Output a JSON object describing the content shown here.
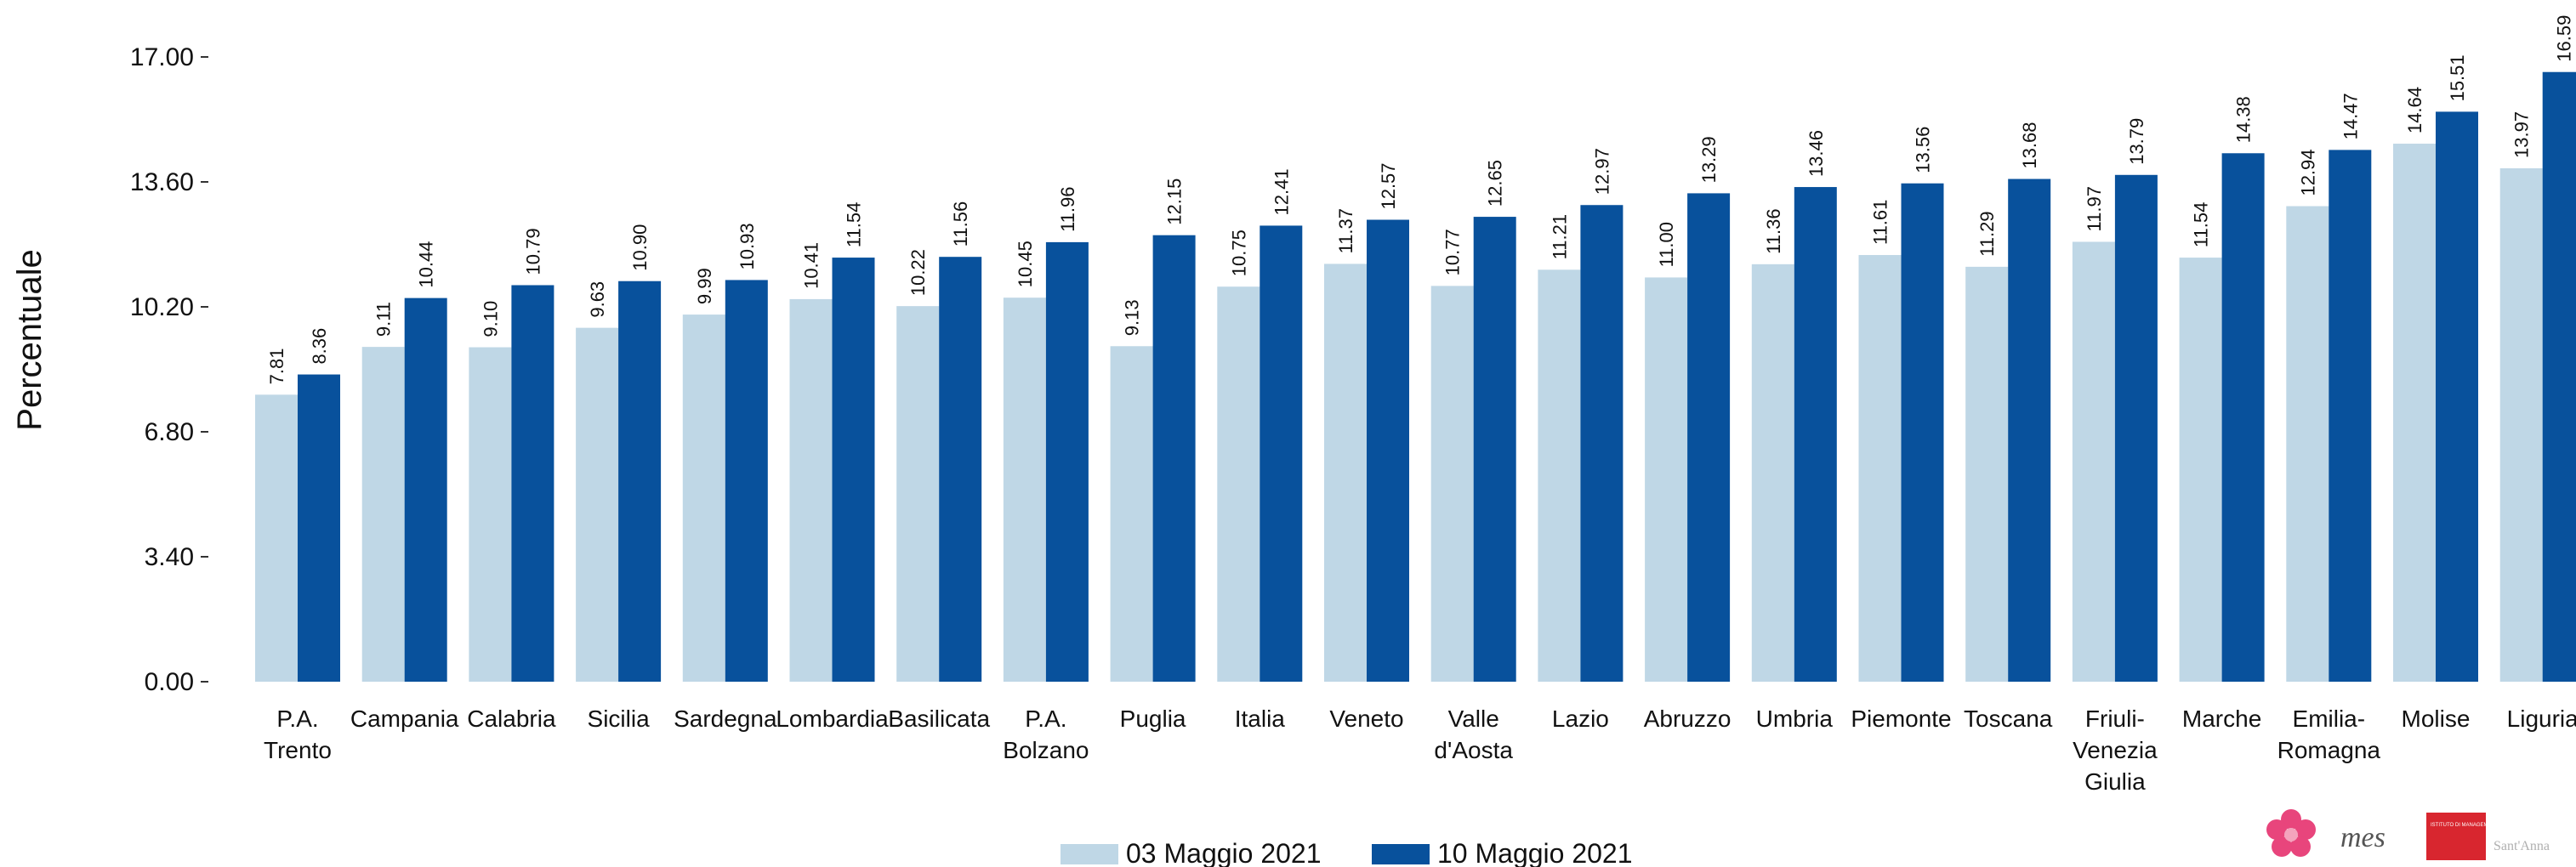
{
  "chart_data": {
    "type": "bar",
    "ylabel": "Percentuale",
    "xlabel": "",
    "ylim": [
      0,
      17
    ],
    "yticks": [
      "0.00",
      "3.40",
      "6.80",
      "10.20",
      "13.60",
      "17.00"
    ],
    "grid": false,
    "legend_position": "bottom-center",
    "categories": [
      [
        "P.A.",
        "Trento"
      ],
      [
        "Campania"
      ],
      [
        "Calabria"
      ],
      [
        "Sicilia"
      ],
      [
        "Sardegna"
      ],
      [
        "Lombardia"
      ],
      [
        "Basilicata"
      ],
      [
        "P.A.",
        "Bolzano"
      ],
      [
        "Puglia"
      ],
      [
        "Italia"
      ],
      [
        "Veneto"
      ],
      [
        "Valle",
        "d'Aosta"
      ],
      [
        "Lazio"
      ],
      [
        "Abruzzo"
      ],
      [
        "Umbria"
      ],
      [
        "Piemonte"
      ],
      [
        "Toscana"
      ],
      [
        "Friuli-",
        "Venezia",
        "Giulia"
      ],
      [
        "Marche"
      ],
      [
        "Emilia-",
        "Romagna"
      ],
      [
        "Molise"
      ],
      [
        "Liguria"
      ]
    ],
    "series": [
      {
        "name": "03 Maggio 2021",
        "color": "#bfd7e6",
        "values": [
          7.81,
          9.11,
          9.1,
          9.63,
          9.99,
          10.41,
          10.22,
          10.45,
          9.13,
          10.75,
          11.37,
          10.77,
          11.21,
          11.0,
          11.36,
          11.61,
          11.29,
          11.97,
          11.54,
          12.94,
          14.64,
          13.97
        ],
        "labels": [
          "7.81",
          "9.11",
          "9.10",
          "9.63",
          "9.99",
          "10.41",
          "10.22",
          "10.45",
          "9.13",
          "10.75",
          "11.37",
          "10.77",
          "11.21",
          "11.00",
          "11.36",
          "11.61",
          "11.29",
          "11.97",
          "11.54",
          "12.94",
          "14.64",
          "13.97"
        ]
      },
      {
        "name": "10 Maggio 2021",
        "color": "#08519c",
        "values": [
          8.36,
          10.44,
          10.79,
          10.9,
          10.93,
          11.54,
          11.56,
          11.96,
          12.15,
          12.41,
          12.57,
          12.65,
          12.97,
          13.29,
          13.46,
          13.56,
          13.68,
          13.79,
          14.38,
          14.47,
          15.51,
          16.59
        ],
        "labels": [
          "8.36",
          "10.44",
          "10.79",
          "10.90",
          "10.93",
          "11.54",
          "11.56",
          "11.96",
          "12.15",
          "12.41",
          "12.57",
          "12.65",
          "12.97",
          "13.29",
          "13.46",
          "13.56",
          "13.68",
          "13.79",
          "14.38",
          "14.47",
          "15.51",
          "16.59"
        ]
      }
    ]
  },
  "logos": {
    "flower": "flower-logo",
    "mes": "mes",
    "istituto": "ISTITUTO DI MANAGEMENT",
    "santanna": "Sant'Anna"
  }
}
